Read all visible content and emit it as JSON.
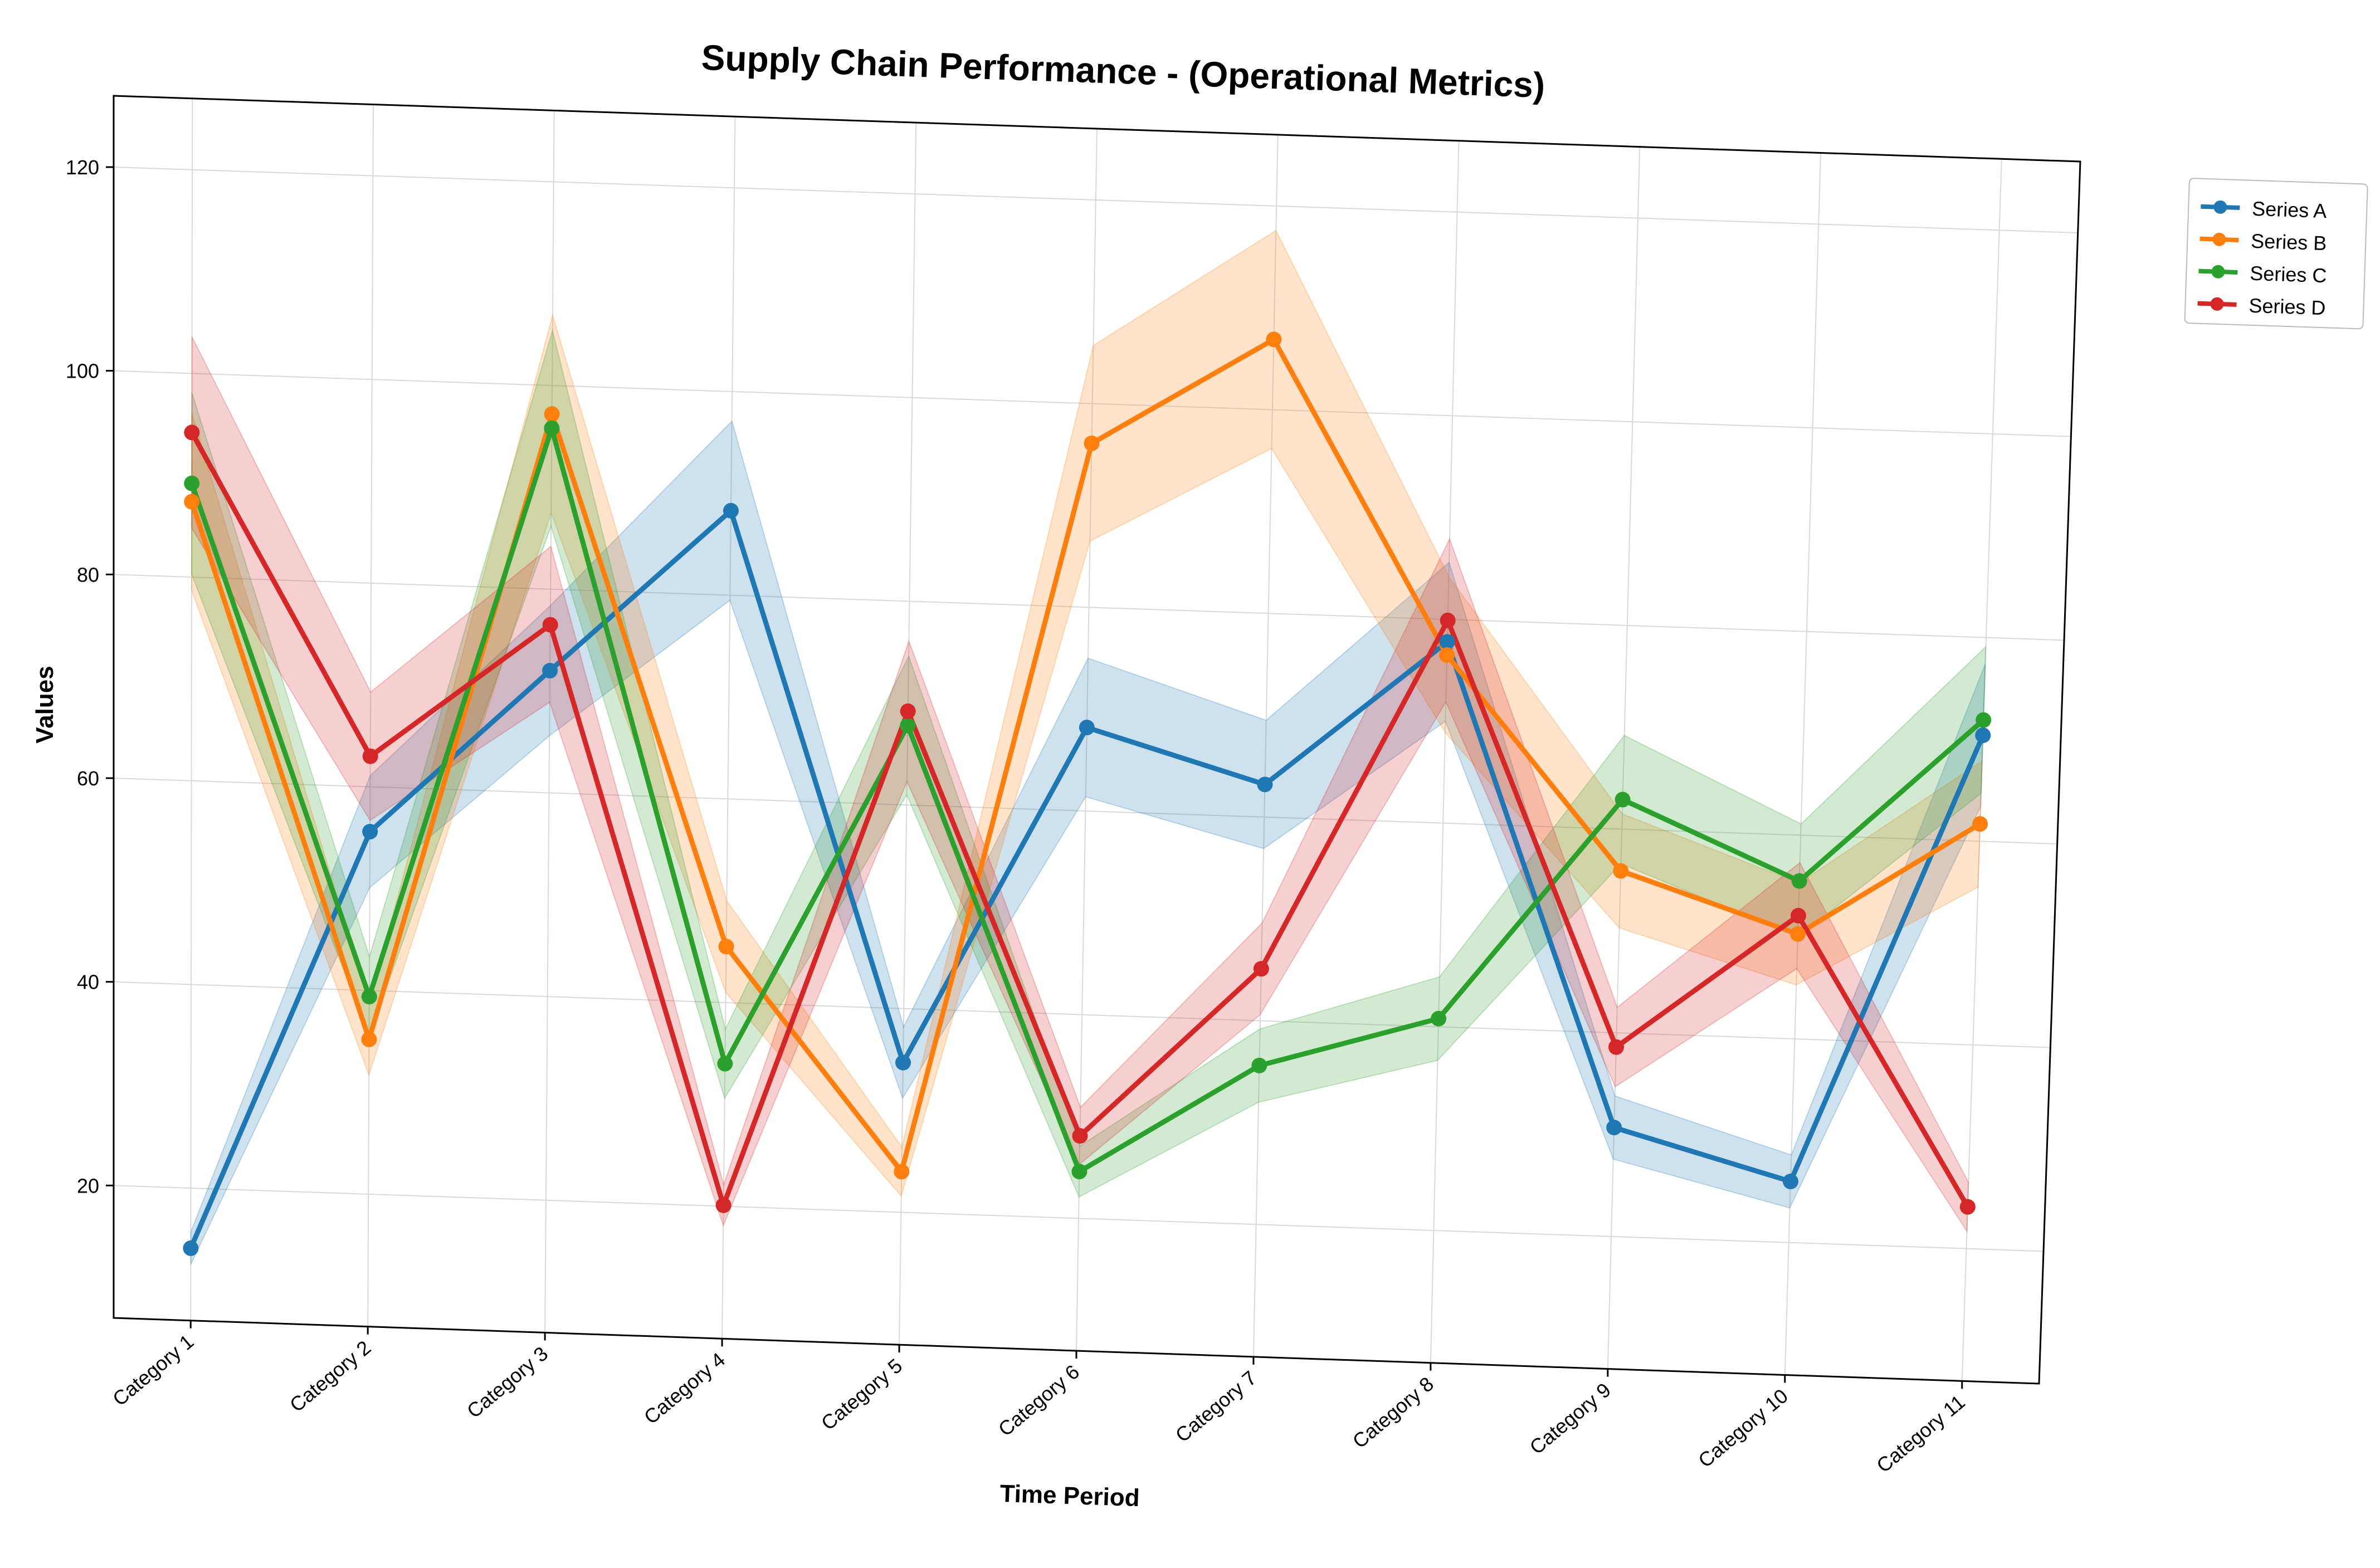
{
  "chart_data": {
    "type": "line",
    "title": "Supply Chain Performance - (Operational Metrics)",
    "xlabel": "Time Period",
    "ylabel": "Values",
    "categories": [
      "Category 1",
      "Category 2",
      "Category 3",
      "Category 4",
      "Category 5",
      "Category 6",
      "Category 7",
      "Category 8",
      "Category 9",
      "Category 10",
      "Category 11"
    ],
    "ylim": [
      7,
      127
    ],
    "yticks": [
      20,
      40,
      60,
      80,
      100,
      120
    ],
    "grid": true,
    "legend_position": "outside-top-right",
    "band_type": "shaded uncertainty band per series",
    "series": [
      {
        "name": "Series A",
        "color": "#1f77b4",
        "values": [
          14.1,
          55.6,
          72.0,
          88.3,
          34.7,
          68.2,
          63.2,
          77.8,
          30.7,
          26.0,
          70.4
        ],
        "band": [
          [
            12.5,
            15.7
          ],
          [
            50.1,
            61.1
          ],
          [
            65.6,
            78.4
          ],
          [
            79.5,
            97.1
          ],
          [
            31.2,
            38.2
          ],
          [
            61.4,
            75.0
          ],
          [
            56.9,
            69.5
          ],
          [
            70.0,
            85.6
          ],
          [
            27.6,
            33.8
          ],
          [
            23.4,
            28.6
          ],
          [
            63.4,
            77.4
          ]
        ]
      },
      {
        "name": "Series B",
        "color": "#ff7f0e",
        "values": [
          87.4,
          35.2,
          97.2,
          45.5,
          24.0,
          96.1,
          106.9,
          76.5,
          55.9,
          50.3,
          61.7
        ],
        "band": [
          [
            78.7,
            96.1
          ],
          [
            31.7,
            38.7
          ],
          [
            87.5,
            106.9
          ],
          [
            41.0,
            50.0
          ],
          [
            21.6,
            26.4
          ],
          [
            86.5,
            105.7
          ],
          [
            96.2,
            117.6
          ],
          [
            68.9,
            84.2
          ],
          [
            50.3,
            61.5
          ],
          [
            45.3,
            55.3
          ],
          [
            55.5,
            67.9
          ]
        ]
      },
      {
        "name": "Series C",
        "color": "#2ca02c",
        "values": [
          89.2,
          39.4,
          95.8,
          34.0,
          67.8,
          24.6,
          35.6,
          40.8,
          62.9,
          55.5,
          71.9
        ],
        "band": [
          [
            80.3,
            98.1
          ],
          [
            35.5,
            43.3
          ],
          [
            86.2,
            105.4
          ],
          [
            30.6,
            37.4
          ],
          [
            61.0,
            74.6
          ],
          [
            22.1,
            27.1
          ],
          [
            32.0,
            39.2
          ],
          [
            36.7,
            44.9
          ],
          [
            56.6,
            69.2
          ],
          [
            50.0,
            61.1
          ],
          [
            64.7,
            79.1
          ]
        ]
      },
      {
        "name": "Series D",
        "color": "#d62728",
        "values": [
          94.2,
          63.0,
          76.5,
          20.1,
          69.2,
          28.1,
          45.1,
          79.9,
          38.6,
          52.1,
          24.1
        ],
        "band": [
          [
            84.8,
            103.6
          ],
          [
            56.7,
            69.3
          ],
          [
            68.9,
            84.2
          ],
          [
            18.1,
            22.1
          ],
          [
            62.3,
            76.1
          ],
          [
            25.3,
            30.9
          ],
          [
            40.6,
            49.6
          ],
          [
            71.9,
            87.9
          ],
          [
            34.7,
            42.5
          ],
          [
            46.9,
            57.3
          ],
          [
            21.7,
            26.5
          ]
        ]
      }
    ]
  }
}
